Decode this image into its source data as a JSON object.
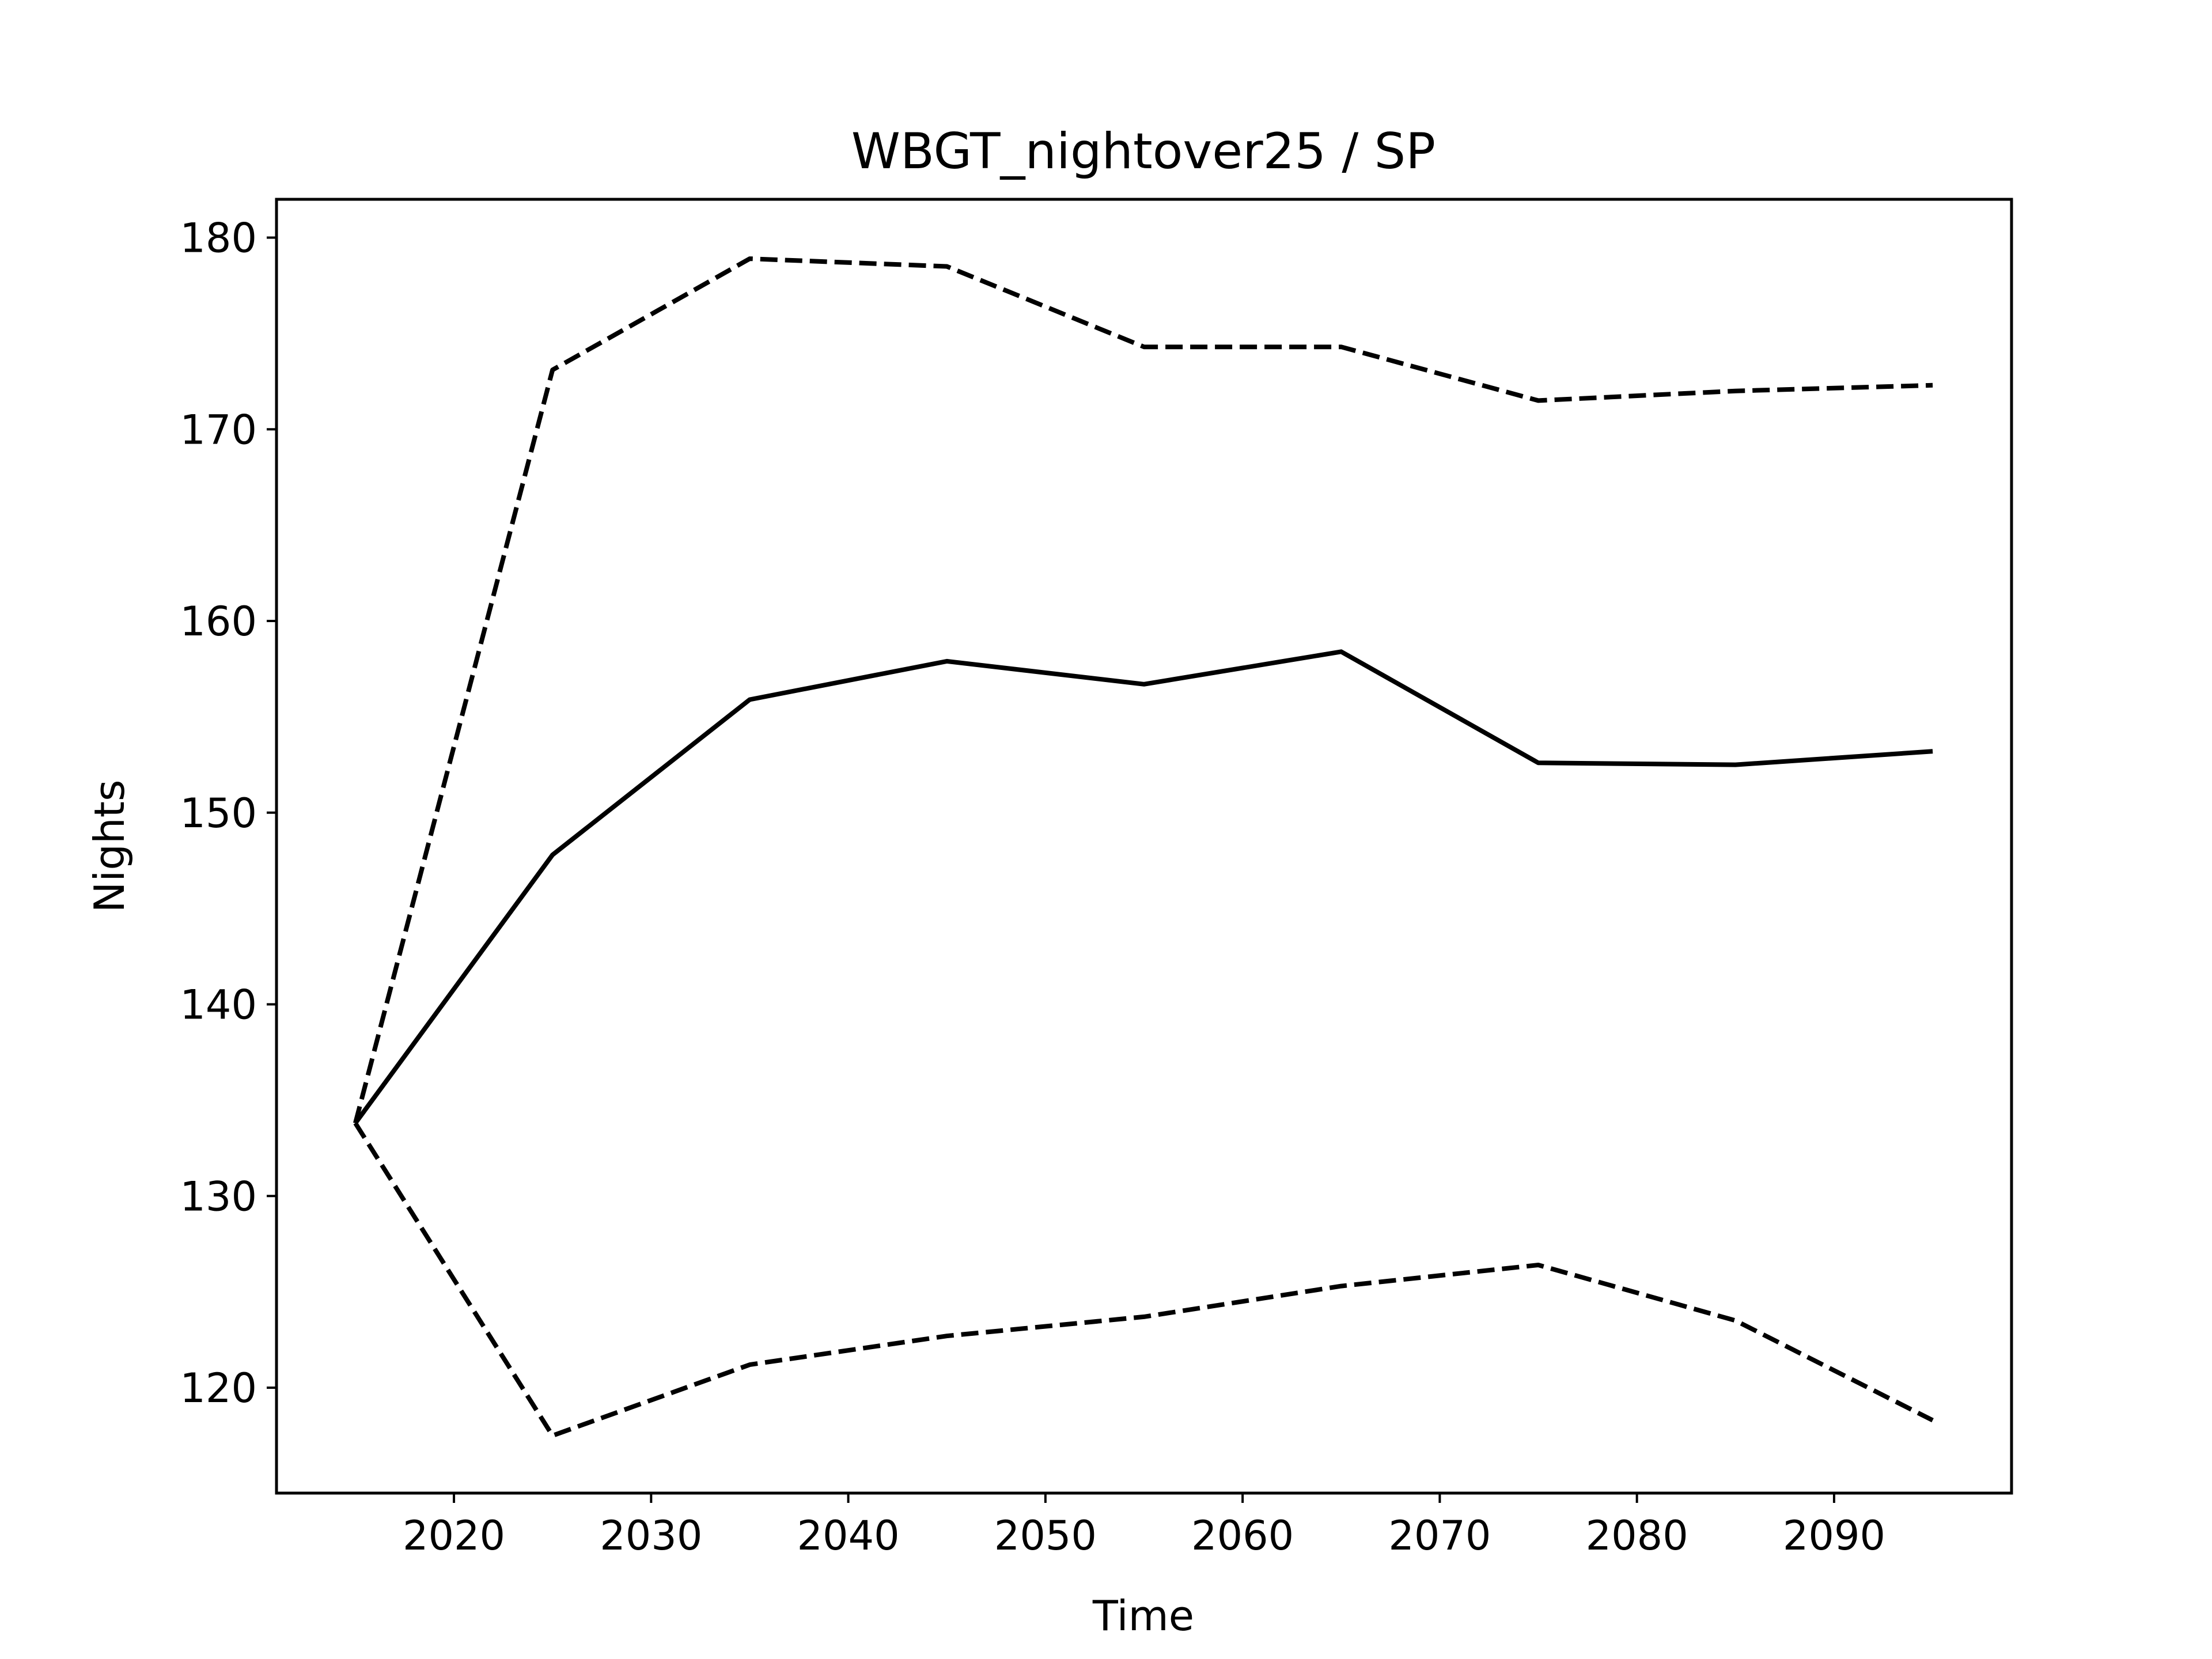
{
  "chart_data": {
    "type": "line",
    "title": "WBGT_nightover25 / SP",
    "xlabel": "Time",
    "ylabel": "Nights",
    "xlim": [
      2011,
      2099
    ],
    "ylim": [
      114.5,
      182
    ],
    "xticks": [
      2020,
      2030,
      2040,
      2050,
      2060,
      2070,
      2080,
      2090
    ],
    "yticks": [
      120,
      130,
      140,
      150,
      160,
      170,
      180
    ],
    "grid": false,
    "legend": "none",
    "x": [
      2015,
      2025,
      2035,
      2045,
      2055,
      2065,
      2075,
      2085,
      2095
    ],
    "series": [
      {
        "style": "solid",
        "color": "#000000",
        "values": [
          133.8,
          147.8,
          155.9,
          157.9,
          156.7,
          158.4,
          152.6,
          152.5,
          153.2
        ]
      },
      {
        "style": "dashed",
        "color": "#000000",
        "values": [
          133.8,
          173.1,
          178.9,
          178.5,
          174.3,
          174.3,
          171.5,
          172.0,
          172.3
        ]
      },
      {
        "style": "dashed",
        "color": "#000000",
        "values": [
          133.8,
          117.5,
          121.2,
          122.7,
          123.7,
          125.3,
          126.4,
          123.5,
          118.3
        ]
      }
    ]
  }
}
